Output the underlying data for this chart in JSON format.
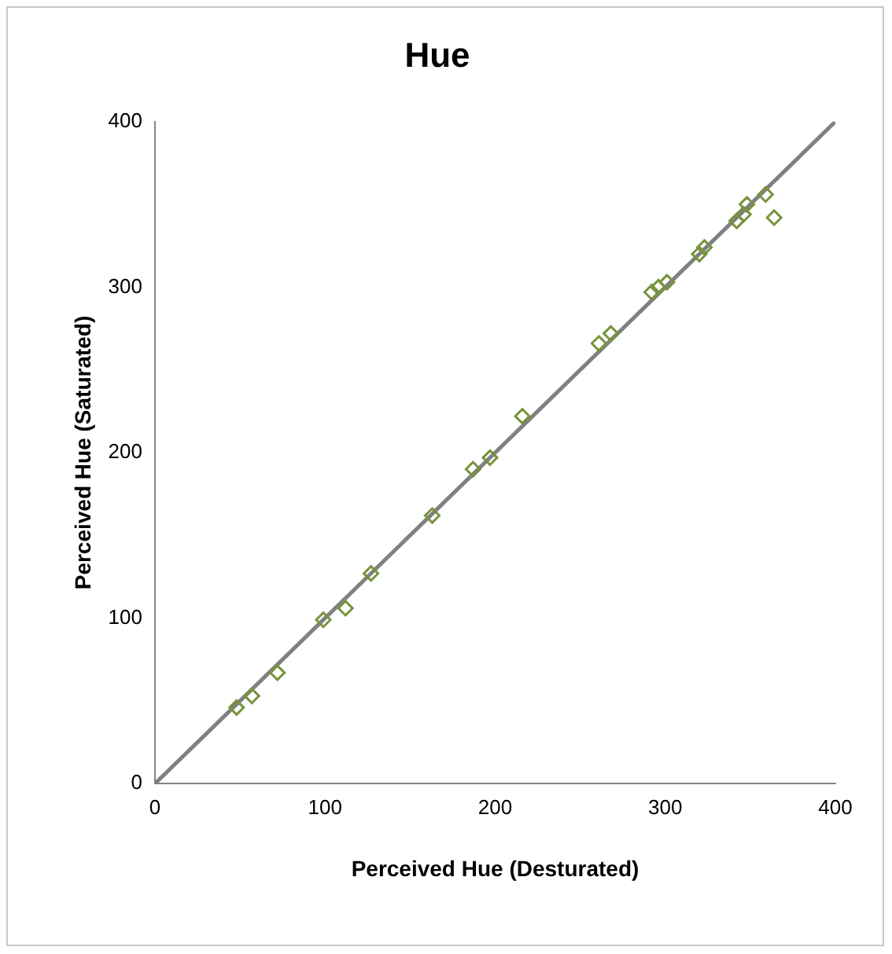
{
  "chart_data": {
    "type": "scatter",
    "title": "Hue",
    "xlabel": "Perceived Hue (Desturated)",
    "ylabel": "Perceived Hue (Saturated)",
    "xlim": [
      0,
      400
    ],
    "ylim": [
      0,
      400
    ],
    "xticks": [
      0,
      100,
      200,
      300,
      400
    ],
    "yticks": [
      0,
      100,
      200,
      300,
      400
    ],
    "grid": false,
    "legend": false,
    "marker": "diamond",
    "series": [
      {
        "color": "#77933c",
        "x": [
          48,
          57,
          72,
          99,
          112,
          127,
          163,
          187,
          197,
          216,
          261,
          268,
          292,
          296,
          301,
          320,
          323,
          342,
          346,
          348,
          359,
          364
        ],
        "values": [
          46,
          53,
          67,
          99,
          106,
          127,
          162,
          190,
          197,
          222,
          266,
          272,
          297,
          300,
          303,
          320,
          324,
          340,
          344,
          350,
          356,
          342
        ]
      },
      {
        "type": "line",
        "marker": "none",
        "color": "#808080",
        "x": [
          0,
          400
        ],
        "values": [
          0,
          400
        ]
      }
    ]
  }
}
